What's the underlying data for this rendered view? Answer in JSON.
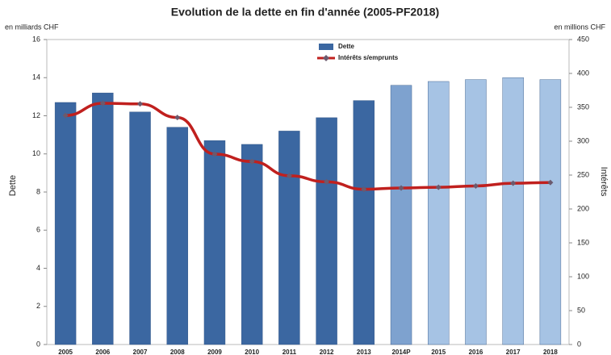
{
  "chart_data": {
    "type": "bar_line",
    "title": "Evolution de la dette en fin d'année (2005-PF2018)",
    "y_unit": "en milliards CHF",
    "y2_unit": "en millions CHF",
    "ylabel": "Dette",
    "y2label": "Intérêts",
    "categories": [
      "2005",
      "2006",
      "2007",
      "2008",
      "2009",
      "2010",
      "2011",
      "2012",
      "2013",
      "2014P",
      "2015",
      "2016",
      "2017",
      "2018"
    ],
    "series": [
      {
        "name": "Dette",
        "type": "bar",
        "color": "#3b67a1",
        "colors": [
          "#3b67a1",
          "#3b67a1",
          "#3b67a1",
          "#3b67a1",
          "#3b67a1",
          "#3b67a1",
          "#3b67a1",
          "#3b67a1",
          "#3b67a1",
          "#7ea2cf",
          "#a6c3e4",
          "#a6c3e4",
          "#a6c3e4",
          "#a6c3e4"
        ],
        "values": [
          12.7,
          13.2,
          12.2,
          11.4,
          10.7,
          10.5,
          11.2,
          11.9,
          12.8,
          13.6,
          13.8,
          13.9,
          14.0,
          13.9
        ]
      },
      {
        "name": "Intérêts s/emprunts",
        "type": "line",
        "axis": "y2",
        "color": "#c0201e",
        "marker_color": "#6b5a6e",
        "values": [
          338,
          356,
          355,
          335,
          281,
          270,
          249,
          240,
          229,
          231,
          232,
          234,
          238,
          239
        ]
      }
    ],
    "ylim": [
      0,
      16
    ],
    "yticks": [
      0,
      2,
      4,
      6,
      8,
      10,
      12,
      14,
      16
    ],
    "y2lim": [
      0,
      450
    ],
    "y2ticks": [
      0,
      50,
      100,
      150,
      200,
      250,
      300,
      350,
      400,
      450
    ],
    "legend": "top"
  }
}
